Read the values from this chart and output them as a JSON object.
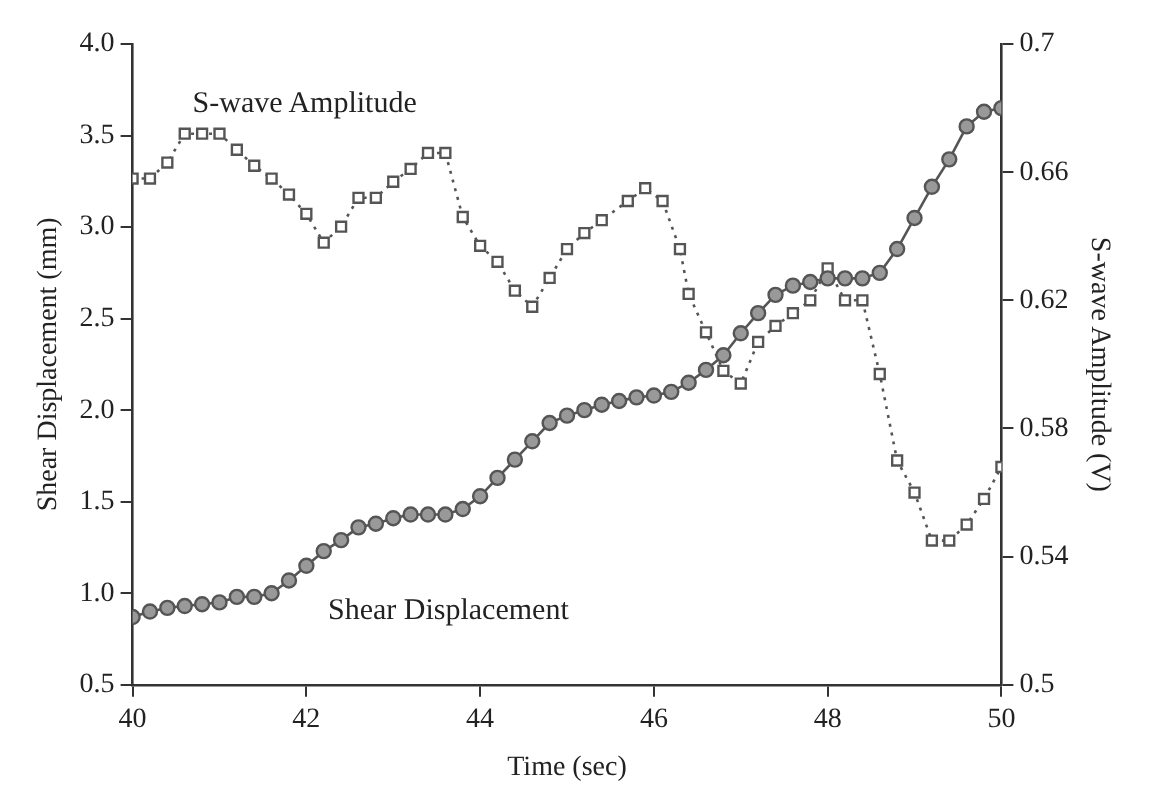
{
  "chart_data": {
    "type": "line",
    "xlabel": "Time (sec)",
    "ylabel": "Shear Displacement (mm)",
    "y2label": "S-wave Amplitude (V)",
    "xlim": [
      40,
      50
    ],
    "xticks": [
      40,
      42,
      44,
      46,
      48,
      50
    ],
    "ylim": [
      0.5,
      4.0
    ],
    "yticks": [
      0.5,
      {
        "value": 1,
        "label": "1.0"
      },
      1.5,
      {
        "value": 2,
        "label": "2.0"
      },
      2.5,
      {
        "value": 3,
        "label": "3.0"
      },
      3.5,
      {
        "value": 4,
        "label": "4.0"
      }
    ],
    "y2lim": [
      0.5,
      0.7
    ],
    "y2ticks": [
      0.5,
      0.54,
      0.58,
      0.62,
      0.66,
      0.7
    ],
    "grid": false,
    "legend": false,
    "series": [
      {
        "name": "S-wave Amplitude",
        "color": "#555555",
        "axis": "y2",
        "marker": "square",
        "line_style": "dotted",
        "x": [
          40.0,
          40.2,
          40.4,
          40.6,
          40.8,
          41.0,
          41.2,
          41.4,
          41.6,
          41.8,
          42.0,
          42.2,
          42.4,
          42.6,
          42.8,
          43.0,
          43.2,
          43.4,
          43.6,
          43.8,
          44.0,
          44.2,
          44.4,
          44.6,
          44.8,
          45.0,
          45.2,
          45.4,
          45.7,
          45.9,
          46.1,
          46.3,
          46.4,
          46.6,
          46.8,
          47.0,
          47.2,
          47.4,
          47.6,
          47.8,
          48.0,
          48.2,
          48.4,
          48.6,
          48.8,
          49.0,
          49.2,
          49.4,
          49.6,
          49.8,
          50.0
        ],
        "values": [
          0.658,
          0.658,
          0.663,
          0.672,
          0.672,
          0.672,
          0.667,
          0.662,
          0.658,
          0.653,
          0.647,
          0.638,
          0.643,
          0.652,
          0.652,
          0.657,
          0.661,
          0.666,
          0.666,
          0.646,
          0.637,
          0.632,
          0.623,
          0.618,
          0.627,
          0.636,
          0.641,
          0.645,
          0.651,
          0.655,
          0.651,
          0.636,
          0.622,
          0.61,
          0.598,
          0.594,
          0.607,
          0.612,
          0.616,
          0.62,
          0.63,
          0.62,
          0.62,
          0.597,
          0.57,
          0.56,
          0.545,
          0.545,
          0.55,
          0.558,
          0.568
        ]
      },
      {
        "name": "Shear Displacement",
        "color": "#555555",
        "marker": "circle",
        "line_style": "solid",
        "x": [
          40.0,
          40.2,
          40.4,
          40.6,
          40.8,
          41.0,
          41.2,
          41.4,
          41.6,
          41.8,
          42.0,
          42.2,
          42.4,
          42.6,
          42.8,
          43.0,
          43.2,
          43.4,
          43.6,
          43.8,
          44.0,
          44.2,
          44.4,
          44.6,
          44.8,
          45.0,
          45.2,
          45.4,
          45.6,
          45.8,
          46.0,
          46.2,
          46.4,
          46.6,
          46.8,
          47.0,
          47.2,
          47.4,
          47.6,
          47.8,
          48.0,
          48.2,
          48.4,
          48.6,
          48.8,
          49.0,
          49.2,
          49.4,
          49.6,
          49.8,
          50.0
        ],
        "values": [
          0.87,
          0.9,
          0.92,
          0.93,
          0.94,
          0.95,
          0.98,
          0.98,
          1.0,
          1.07,
          1.15,
          1.23,
          1.29,
          1.36,
          1.38,
          1.41,
          1.43,
          1.43,
          1.43,
          1.46,
          1.53,
          1.63,
          1.73,
          1.83,
          1.93,
          1.97,
          2.0,
          2.03,
          2.05,
          2.07,
          2.08,
          2.1,
          2.15,
          2.22,
          2.3,
          2.42,
          2.53,
          2.63,
          2.68,
          2.7,
          2.72,
          2.72,
          2.72,
          2.75,
          2.88,
          3.05,
          3.22,
          3.37,
          3.55,
          3.63,
          3.65
        ]
      }
    ]
  }
}
